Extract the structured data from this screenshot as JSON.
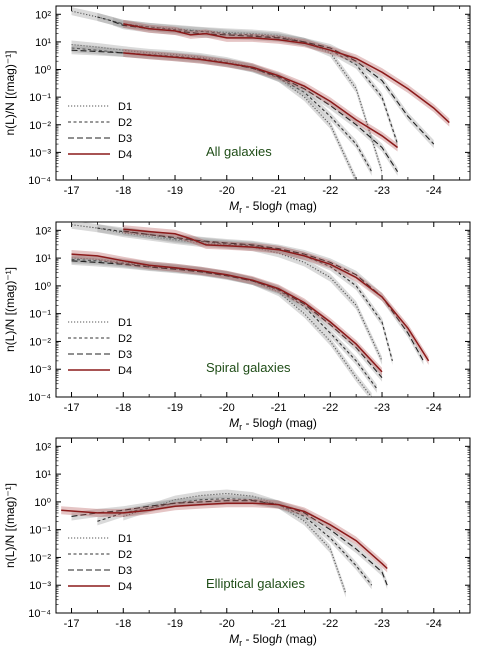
{
  "chart_data": [
    {
      "type": "line",
      "title": "All galaxies",
      "xlabel_main": "M",
      "xlabel_sub": "r",
      "xlabel_rest": " - 5log",
      "xlabel_h": "h",
      "xlabel_unit": " (mag)",
      "ylabel": "n(L)/N [(mag)⁻¹]",
      "xlim": [
        -16.7,
        -24.7
      ],
      "ylim_exp": [
        -4,
        2.3
      ],
      "xticks": [
        "-17",
        "-18",
        "-19",
        "-20",
        "-21",
        "-22",
        "-23",
        "-24"
      ],
      "yticks": [
        "10⁻⁴",
        "10⁻³",
        "10⁻²",
        "10⁻¹",
        "10⁰",
        "10¹",
        "10²"
      ],
      "legend": [
        "D1",
        "D2",
        "D3",
        "D4"
      ],
      "series": [
        {
          "name": "D1",
          "group": "upper",
          "x": [
            -17,
            -17.5,
            -18,
            -18.5,
            -19,
            -19.5,
            -20,
            -20.5,
            -21,
            -21.5,
            -22,
            -22.5,
            -23
          ],
          "y": [
            130,
            80,
            45,
            35,
            30,
            25,
            22,
            20,
            17,
            10,
            4,
            0.2,
            0.0002
          ]
        },
        {
          "name": "D2",
          "group": "upper",
          "x": [
            -17.5,
            -18,
            -18.5,
            -19,
            -19.5,
            -20,
            -20.5,
            -21,
            -21.5,
            -22,
            -22.5,
            -23,
            -23.3
          ],
          "y": [
            80,
            45,
            35,
            28,
            24,
            20,
            18,
            15,
            10,
            5,
            1.5,
            0.1,
            0.002
          ]
        },
        {
          "name": "D3",
          "group": "upper",
          "x": [
            -17.8,
            -18,
            -18.5,
            -19,
            -19.5,
            -20,
            -20.5,
            -21,
            -21.5,
            -22,
            -22.5,
            -23,
            -23.5,
            -24
          ],
          "y": [
            55,
            40,
            30,
            25,
            20,
            18,
            16,
            14,
            10,
            6,
            2,
            0.4,
            0.02,
            0.002
          ]
        },
        {
          "name": "D4",
          "group": "upper",
          "x": [
            -18,
            -18.5,
            -19,
            -19.3,
            -19.6,
            -20,
            -20.5,
            -21,
            -21.5,
            -22,
            -22.5,
            -23,
            -23.5,
            -24,
            -24.3
          ],
          "y": [
            45,
            30,
            25,
            18,
            20,
            14,
            14,
            12,
            9,
            5,
            2.5,
            0.8,
            0.2,
            0.04,
            0.012
          ]
        },
        {
          "name": "D1",
          "group": "lower",
          "x": [
            -17,
            -17.5,
            -18,
            -18.5,
            -19,
            -19.5,
            -20,
            -20.5,
            -21,
            -21.5,
            -22,
            -22.5
          ],
          "y": [
            8,
            6.5,
            5,
            4,
            3.5,
            2.8,
            2,
            1.2,
            0.5,
            0.1,
            0.01,
            0.0001
          ]
        },
        {
          "name": "D2",
          "group": "lower",
          "x": [
            -17,
            -17.5,
            -18,
            -18.5,
            -19,
            -19.5,
            -20,
            -20.5,
            -21,
            -21.5,
            -22,
            -22.5,
            -22.8
          ],
          "y": [
            6,
            5,
            4,
            3.5,
            3,
            2.5,
            1.8,
            1.1,
            0.5,
            0.15,
            0.02,
            0.002,
            0.0002
          ]
        },
        {
          "name": "D3",
          "group": "lower",
          "x": [
            -17,
            -17.5,
            -18,
            -18.5,
            -19,
            -19.5,
            -20,
            -20.5,
            -21,
            -21.5,
            -22,
            -22.5,
            -23,
            -23.3
          ],
          "y": [
            5,
            4.5,
            4,
            3.3,
            2.8,
            2.3,
            1.7,
            1.1,
            0.55,
            0.2,
            0.05,
            0.01,
            0.0015,
            0.0002
          ]
        },
        {
          "name": "D4",
          "group": "lower",
          "x": [
            -18,
            -18.5,
            -19,
            -19.5,
            -20,
            -20.5,
            -21,
            -21.5,
            -22,
            -22.5,
            -23,
            -23.3
          ],
          "y": [
            4,
            3.3,
            2.8,
            2.3,
            1.7,
            1.2,
            0.6,
            0.25,
            0.07,
            0.015,
            0.004,
            0.0015
          ]
        }
      ]
    },
    {
      "type": "line",
      "title": "Spiral galaxies",
      "xlabel_main": "M",
      "xlabel_sub": "r",
      "xlabel_rest": " - 5log",
      "xlabel_h": "h",
      "xlabel_unit": " (mag)",
      "ylabel": "n(L)/N [(mag)⁻¹]",
      "xlim": [
        -16.7,
        -24.7
      ],
      "ylim_exp": [
        -4,
        2.3
      ],
      "xticks": [
        "-17",
        "-18",
        "-19",
        "-20",
        "-21",
        "-22",
        "-23",
        "-24"
      ],
      "yticks": [
        "10⁻⁴",
        "10⁻³",
        "10⁻²",
        "10⁻¹",
        "10⁰",
        "10¹",
        "10²"
      ],
      "legend": [
        "D1",
        "D2",
        "D3",
        "D4"
      ],
      "series": [
        {
          "name": "D1",
          "group": "upper",
          "x": [
            -17,
            -17.5,
            -18,
            -18.5,
            -19,
            -19.5,
            -20,
            -20.5,
            -21,
            -21.5,
            -22,
            -22.5,
            -23
          ],
          "y": [
            160,
            120,
            80,
            60,
            45,
            35,
            30,
            25,
            15,
            7,
            2,
            0.2,
            0.002
          ]
        },
        {
          "name": "D2",
          "group": "upper",
          "x": [
            -17.5,
            -18,
            -18.5,
            -19,
            -19.5,
            -20,
            -20.5,
            -21,
            -21.5,
            -22,
            -22.5,
            -23,
            -23.2
          ],
          "y": [
            120,
            90,
            70,
            50,
            40,
            32,
            28,
            20,
            12,
            5,
            1,
            0.05,
            0.002
          ]
        },
        {
          "name": "D3",
          "group": "upper",
          "x": [
            -18,
            -18.5,
            -19,
            -19.5,
            -20,
            -20.5,
            -21,
            -21.5,
            -22,
            -22.5,
            -23,
            -23.5,
            -23.8
          ],
          "y": [
            95,
            70,
            55,
            42,
            35,
            30,
            22,
            14,
            7,
            2.5,
            0.4,
            0.02,
            0.002
          ]
        },
        {
          "name": "D4",
          "group": "upper",
          "x": [
            -18,
            -18.5,
            -19,
            -19.3,
            -19.6,
            -20,
            -20.5,
            -21,
            -21.5,
            -22,
            -22.5,
            -23,
            -23.5,
            -23.9
          ],
          "y": [
            110,
            90,
            75,
            50,
            30,
            28,
            25,
            20,
            12,
            6,
            2,
            0.4,
            0.03,
            0.002
          ]
        },
        {
          "name": "D1",
          "group": "lower",
          "x": [
            -17,
            -17.5,
            -18,
            -18.5,
            -19,
            -19.5,
            -20,
            -20.5,
            -21,
            -21.5,
            -22,
            -22.5,
            -22.8
          ],
          "y": [
            10,
            9,
            7,
            5.5,
            4.5,
            3.5,
            2.5,
            1.5,
            0.6,
            0.1,
            0.01,
            0.0005,
            0.0001
          ]
        },
        {
          "name": "D2",
          "group": "lower",
          "x": [
            -17,
            -17.5,
            -18,
            -18.5,
            -19,
            -19.5,
            -20,
            -20.5,
            -21,
            -21.5,
            -22,
            -22.5,
            -22.9
          ],
          "y": [
            9,
            8,
            6.5,
            5,
            4.2,
            3.3,
            2.4,
            1.5,
            0.7,
            0.18,
            0.02,
            0.002,
            0.0002
          ]
        },
        {
          "name": "D3",
          "group": "lower",
          "x": [
            -17,
            -17.5,
            -18,
            -18.5,
            -19,
            -19.5,
            -20,
            -20.5,
            -21,
            -21.5,
            -22,
            -22.5,
            -23
          ],
          "y": [
            8,
            7,
            6,
            4.8,
            4,
            3.2,
            2.3,
            1.5,
            0.75,
            0.22,
            0.04,
            0.006,
            0.0005
          ]
        },
        {
          "name": "D4",
          "group": "lower",
          "x": [
            -17,
            -17.5,
            -18,
            -18.5,
            -19,
            -19.5,
            -20,
            -20.5,
            -21,
            -21.5,
            -22,
            -22.5,
            -23
          ],
          "y": [
            14,
            12,
            8,
            5.5,
            4.5,
            3.5,
            2.5,
            1.6,
            0.8,
            0.25,
            0.05,
            0.008,
            0.0008
          ]
        }
      ]
    },
    {
      "type": "line",
      "title": "Elliptical galaxies",
      "xlabel_main": "M",
      "xlabel_sub": "r",
      "xlabel_rest": " - 5log",
      "xlabel_h": "h",
      "xlabel_unit": " (mag)",
      "ylabel": "n(L)/N [(mag)⁻¹]",
      "xlim": [
        -16.7,
        -24.7
      ],
      "ylim_exp": [
        -4,
        2.3
      ],
      "xticks": [
        "-17",
        "-18",
        "-19",
        "-20",
        "-21",
        "-22",
        "-23",
        "-24"
      ],
      "yticks": [
        "10⁻⁴",
        "10⁻³",
        "10⁻²",
        "10⁻¹",
        "10⁰",
        "10¹",
        "10²"
      ],
      "legend": [
        "D1",
        "D2",
        "D3",
        "D4"
      ],
      "series": [
        {
          "name": "D1",
          "group": "single",
          "x": [
            -18,
            -18.5,
            -19,
            -19.5,
            -20,
            -20.5,
            -21,
            -21.5,
            -22,
            -22.3
          ],
          "y": [
            0.3,
            0.6,
            1.2,
            1.7,
            2,
            1.6,
            0.8,
            0.2,
            0.02,
            0.0005
          ]
        },
        {
          "name": "D2",
          "group": "single",
          "x": [
            -17.5,
            -18,
            -18.5,
            -19,
            -19.5,
            -20,
            -20.5,
            -21,
            -21.5,
            -22,
            -22.5,
            -22.8
          ],
          "y": [
            0.2,
            0.4,
            0.6,
            0.9,
            1.2,
            1.3,
            1.2,
            0.8,
            0.3,
            0.05,
            0.005,
            0.001
          ]
        },
        {
          "name": "D3",
          "group": "single",
          "x": [
            -17,
            -17.5,
            -18,
            -18.5,
            -19,
            -19.5,
            -20,
            -20.5,
            -21,
            -21.5,
            -22,
            -22.5,
            -23,
            -23.1
          ],
          "y": [
            0.3,
            0.4,
            0.5,
            0.7,
            0.9,
            1,
            1.1,
            1.1,
            0.8,
            0.4,
            0.1,
            0.02,
            0.003,
            0.001
          ]
        },
        {
          "name": "D4",
          "group": "single",
          "x": [
            -16.8,
            -17.5,
            -18,
            -18.5,
            -19,
            -19.5,
            -20,
            -20.5,
            -21,
            -21.5,
            -22,
            -22.5,
            -23,
            -23.1
          ],
          "y": [
            0.5,
            0.4,
            0.4,
            0.5,
            0.7,
            0.8,
            0.9,
            0.9,
            0.8,
            0.45,
            0.15,
            0.04,
            0.006,
            0.004
          ]
        }
      ]
    }
  ]
}
